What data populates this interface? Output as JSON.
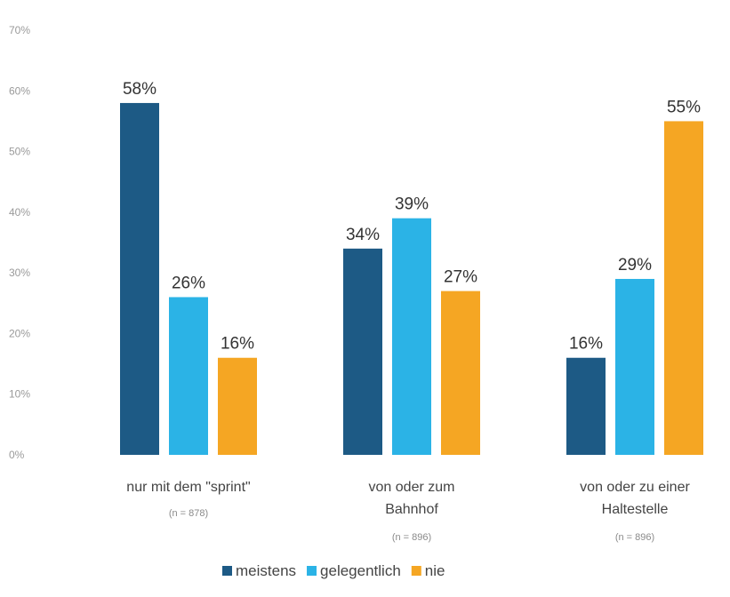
{
  "chart_data": {
    "type": "bar",
    "title": "",
    "xlabel": "",
    "ylabel": "",
    "ylim": [
      0,
      70
    ],
    "yticks": [
      0,
      10,
      20,
      30,
      40,
      50,
      60,
      70
    ],
    "ytick_labels": [
      "0%",
      "10%",
      "20%",
      "30%",
      "40%",
      "50%",
      "60%",
      "70%"
    ],
    "grid": false,
    "legend_position": "bottom",
    "categories": [
      {
        "lines": [
          "nur mit dem \"sprint\""
        ],
        "n": "(n = 878)"
      },
      {
        "lines": [
          "von oder zum",
          "Bahnhof"
        ],
        "n": "(n = 896)"
      },
      {
        "lines": [
          "von oder zu einer",
          "Haltestelle"
        ],
        "n": "(n = 896)"
      }
    ],
    "series": [
      {
        "name": "meistens",
        "color": "#1d5a85",
        "values": [
          58,
          34,
          16
        ],
        "labels": [
          "58%",
          "34%",
          "16%"
        ]
      },
      {
        "name": "gelegentlich",
        "color": "#2bb3e6",
        "values": [
          26,
          39,
          29
        ],
        "labels": [
          "26%",
          "39%",
          "29%"
        ]
      },
      {
        "name": "nie",
        "color": "#f5a623",
        "values": [
          16,
          27,
          55
        ],
        "labels": [
          "16%",
          "27%",
          "55%"
        ]
      }
    ]
  }
}
